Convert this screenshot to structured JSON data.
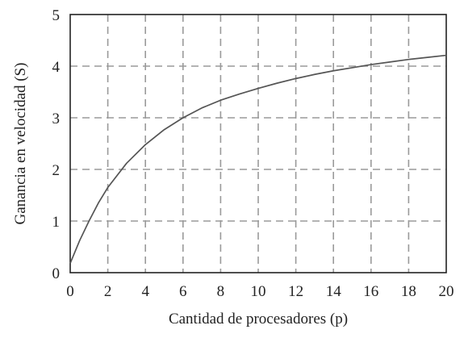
{
  "chart_data": {
    "type": "line",
    "title": "",
    "xlabel": "Cantidad de procesadores (p)",
    "ylabel": "Ganancia en velocidad (S)",
    "xlim": [
      0,
      20
    ],
    "ylim": [
      0,
      5
    ],
    "x_ticks": [
      "0",
      "2",
      "4",
      "6",
      "8",
      "10",
      "12",
      "14",
      "16",
      "18",
      "20"
    ],
    "y_ticks": [
      "0",
      "1",
      "2",
      "3",
      "4",
      "5"
    ],
    "grid": true,
    "grid_style": "dashed",
    "line_color": "#555555",
    "grid_color": "#9a9a9a",
    "series": [
      {
        "x": [
          0.0,
          0.5,
          1.0,
          1.5,
          2.0,
          3.0,
          4.0,
          5.0,
          6.0,
          7.0,
          8.0,
          9.0,
          10.0,
          11.0,
          12.0,
          13.0,
          14.0,
          15.0,
          16.0,
          17.0,
          18.0,
          19.0,
          20.0
        ],
        "y": [
          0.18,
          0.62,
          1.0,
          1.35,
          1.65,
          2.12,
          2.48,
          2.77,
          3.0,
          3.19,
          3.34,
          3.46,
          3.57,
          3.67,
          3.76,
          3.84,
          3.91,
          3.97,
          4.03,
          4.08,
          4.13,
          4.17,
          4.21
        ]
      }
    ]
  }
}
